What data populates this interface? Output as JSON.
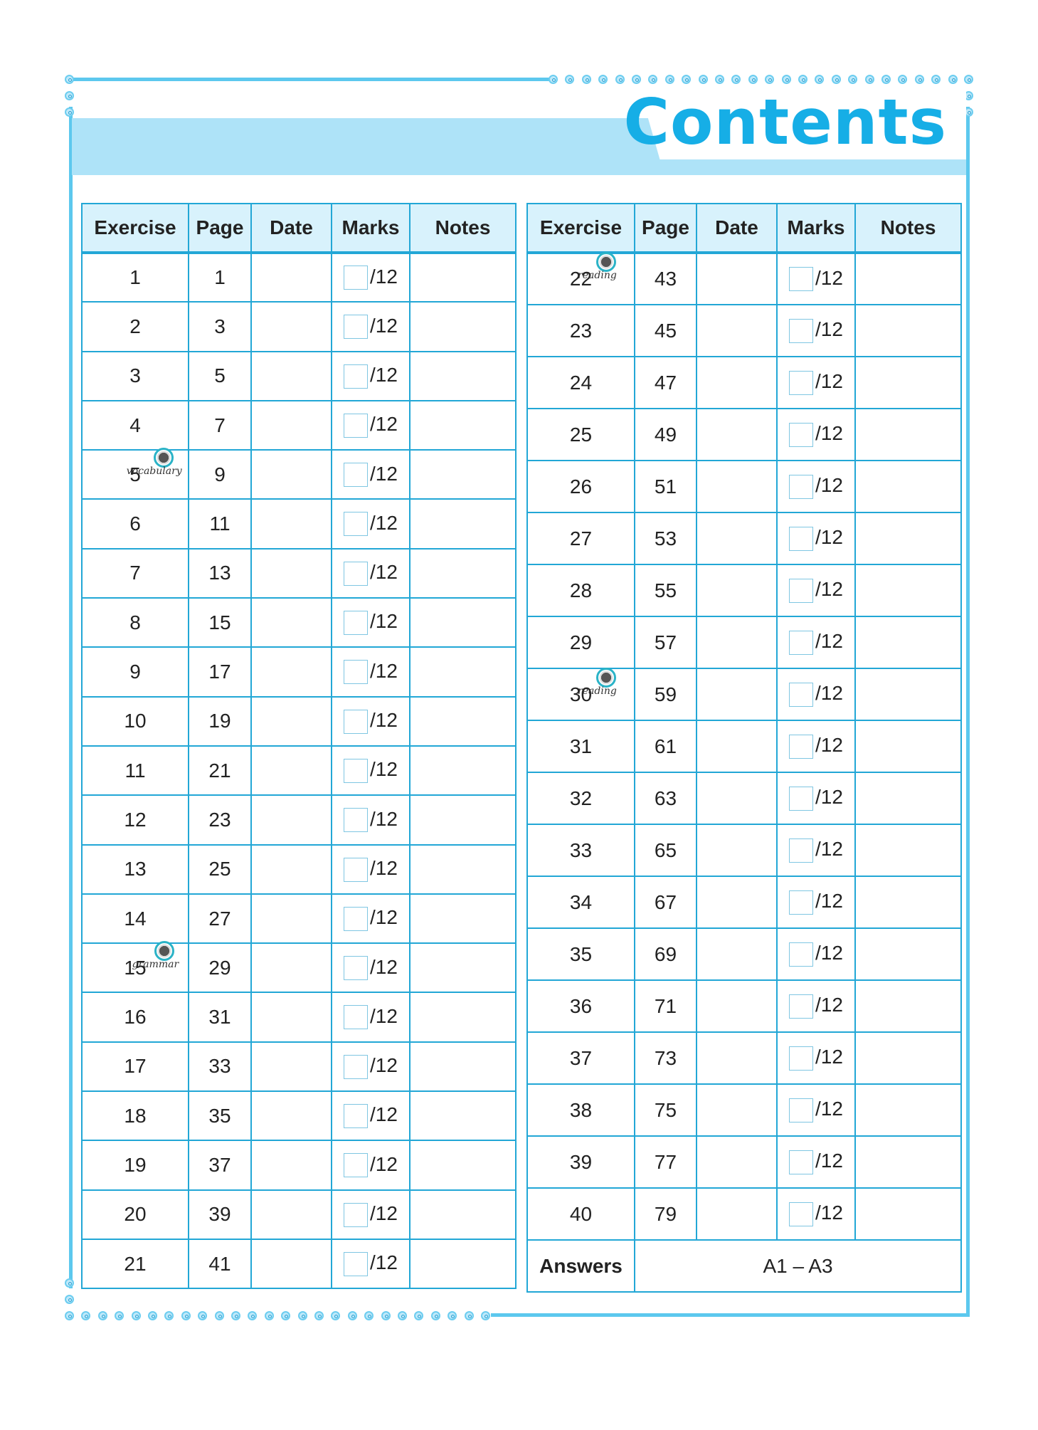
{
  "title": "Contents",
  "colors": {
    "accent": "#16aee6",
    "band": "#aee3f8",
    "grid": "#22a7d6",
    "header_bg": "#d8f2fc"
  },
  "headers": [
    "Exercise",
    "Page",
    "Date",
    "Marks",
    "Notes"
  ],
  "marks_total": "/12",
  "left_rows": [
    {
      "exercise": "1",
      "page": "1"
    },
    {
      "exercise": "2",
      "page": "3"
    },
    {
      "exercise": "3",
      "page": "5"
    },
    {
      "exercise": "4",
      "page": "7"
    },
    {
      "exercise": "5",
      "page": "9",
      "tag": "vocabulary"
    },
    {
      "exercise": "6",
      "page": "11"
    },
    {
      "exercise": "7",
      "page": "13"
    },
    {
      "exercise": "8",
      "page": "15"
    },
    {
      "exercise": "9",
      "page": "17"
    },
    {
      "exercise": "10",
      "page": "19"
    },
    {
      "exercise": "11",
      "page": "21"
    },
    {
      "exercise": "12",
      "page": "23"
    },
    {
      "exercise": "13",
      "page": "25"
    },
    {
      "exercise": "14",
      "page": "27"
    },
    {
      "exercise": "15",
      "page": "29",
      "tag": "grammar"
    },
    {
      "exercise": "16",
      "page": "31"
    },
    {
      "exercise": "17",
      "page": "33"
    },
    {
      "exercise": "18",
      "page": "35"
    },
    {
      "exercise": "19",
      "page": "37"
    },
    {
      "exercise": "20",
      "page": "39"
    },
    {
      "exercise": "21",
      "page": "41"
    }
  ],
  "right_rows": [
    {
      "exercise": "22",
      "page": "43",
      "tag": "reading"
    },
    {
      "exercise": "23",
      "page": "45"
    },
    {
      "exercise": "24",
      "page": "47"
    },
    {
      "exercise": "25",
      "page": "49"
    },
    {
      "exercise": "26",
      "page": "51"
    },
    {
      "exercise": "27",
      "page": "53"
    },
    {
      "exercise": "28",
      "page": "55"
    },
    {
      "exercise": "29",
      "page": "57"
    },
    {
      "exercise": "30",
      "page": "59",
      "tag": "reading"
    },
    {
      "exercise": "31",
      "page": "61"
    },
    {
      "exercise": "32",
      "page": "63"
    },
    {
      "exercise": "33",
      "page": "65"
    },
    {
      "exercise": "34",
      "page": "67"
    },
    {
      "exercise": "35",
      "page": "69"
    },
    {
      "exercise": "36",
      "page": "71"
    },
    {
      "exercise": "37",
      "page": "73"
    },
    {
      "exercise": "38",
      "page": "75"
    },
    {
      "exercise": "39",
      "page": "77"
    },
    {
      "exercise": "40",
      "page": "79"
    }
  ],
  "answers": {
    "label": "Answers",
    "pages": "A1 – A3"
  }
}
